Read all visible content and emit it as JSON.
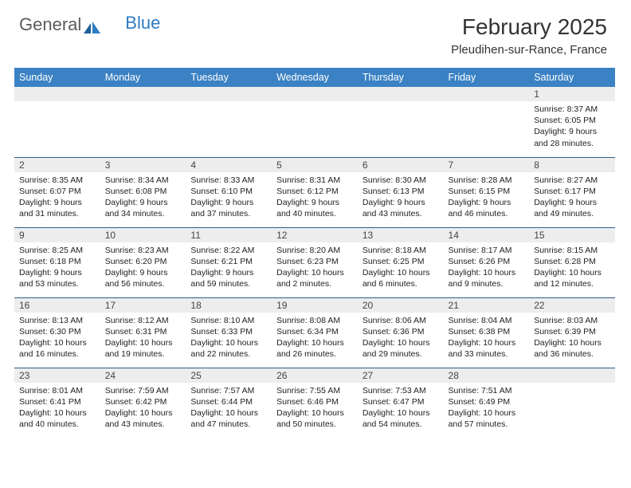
{
  "logo": {
    "text1": "General",
    "text2": "Blue"
  },
  "title": "February 2025",
  "location": "Pleudihen-sur-Rance, France",
  "colors": {
    "header_bg": "#3b82c4",
    "header_text": "#ffffff",
    "daynum_bg": "#ededed",
    "row_border": "#2f5e8a",
    "logo_accent": "#2d7cc1",
    "logo_gray": "#5b5b5b",
    "page_bg": "#ffffff"
  },
  "typography": {
    "title_fontsize": 28,
    "location_fontsize": 15,
    "dayheader_fontsize": 12.5,
    "daynum_fontsize": 12,
    "cell_fontsize": 10.5
  },
  "day_headers": [
    "Sunday",
    "Monday",
    "Tuesday",
    "Wednesday",
    "Thursday",
    "Friday",
    "Saturday"
  ],
  "weeks": [
    [
      {
        "num": "",
        "lines": []
      },
      {
        "num": "",
        "lines": []
      },
      {
        "num": "",
        "lines": []
      },
      {
        "num": "",
        "lines": []
      },
      {
        "num": "",
        "lines": []
      },
      {
        "num": "",
        "lines": []
      },
      {
        "num": "1",
        "lines": [
          "Sunrise: 8:37 AM",
          "Sunset: 6:05 PM",
          "Daylight: 9 hours",
          "and 28 minutes."
        ]
      }
    ],
    [
      {
        "num": "2",
        "lines": [
          "Sunrise: 8:35 AM",
          "Sunset: 6:07 PM",
          "Daylight: 9 hours",
          "and 31 minutes."
        ]
      },
      {
        "num": "3",
        "lines": [
          "Sunrise: 8:34 AM",
          "Sunset: 6:08 PM",
          "Daylight: 9 hours",
          "and 34 minutes."
        ]
      },
      {
        "num": "4",
        "lines": [
          "Sunrise: 8:33 AM",
          "Sunset: 6:10 PM",
          "Daylight: 9 hours",
          "and 37 minutes."
        ]
      },
      {
        "num": "5",
        "lines": [
          "Sunrise: 8:31 AM",
          "Sunset: 6:12 PM",
          "Daylight: 9 hours",
          "and 40 minutes."
        ]
      },
      {
        "num": "6",
        "lines": [
          "Sunrise: 8:30 AM",
          "Sunset: 6:13 PM",
          "Daylight: 9 hours",
          "and 43 minutes."
        ]
      },
      {
        "num": "7",
        "lines": [
          "Sunrise: 8:28 AM",
          "Sunset: 6:15 PM",
          "Daylight: 9 hours",
          "and 46 minutes."
        ]
      },
      {
        "num": "8",
        "lines": [
          "Sunrise: 8:27 AM",
          "Sunset: 6:17 PM",
          "Daylight: 9 hours",
          "and 49 minutes."
        ]
      }
    ],
    [
      {
        "num": "9",
        "lines": [
          "Sunrise: 8:25 AM",
          "Sunset: 6:18 PM",
          "Daylight: 9 hours",
          "and 53 minutes."
        ]
      },
      {
        "num": "10",
        "lines": [
          "Sunrise: 8:23 AM",
          "Sunset: 6:20 PM",
          "Daylight: 9 hours",
          "and 56 minutes."
        ]
      },
      {
        "num": "11",
        "lines": [
          "Sunrise: 8:22 AM",
          "Sunset: 6:21 PM",
          "Daylight: 9 hours",
          "and 59 minutes."
        ]
      },
      {
        "num": "12",
        "lines": [
          "Sunrise: 8:20 AM",
          "Sunset: 6:23 PM",
          "Daylight: 10 hours",
          "and 2 minutes."
        ]
      },
      {
        "num": "13",
        "lines": [
          "Sunrise: 8:18 AM",
          "Sunset: 6:25 PM",
          "Daylight: 10 hours",
          "and 6 minutes."
        ]
      },
      {
        "num": "14",
        "lines": [
          "Sunrise: 8:17 AM",
          "Sunset: 6:26 PM",
          "Daylight: 10 hours",
          "and 9 minutes."
        ]
      },
      {
        "num": "15",
        "lines": [
          "Sunrise: 8:15 AM",
          "Sunset: 6:28 PM",
          "Daylight: 10 hours",
          "and 12 minutes."
        ]
      }
    ],
    [
      {
        "num": "16",
        "lines": [
          "Sunrise: 8:13 AM",
          "Sunset: 6:30 PM",
          "Daylight: 10 hours",
          "and 16 minutes."
        ]
      },
      {
        "num": "17",
        "lines": [
          "Sunrise: 8:12 AM",
          "Sunset: 6:31 PM",
          "Daylight: 10 hours",
          "and 19 minutes."
        ]
      },
      {
        "num": "18",
        "lines": [
          "Sunrise: 8:10 AM",
          "Sunset: 6:33 PM",
          "Daylight: 10 hours",
          "and 22 minutes."
        ]
      },
      {
        "num": "19",
        "lines": [
          "Sunrise: 8:08 AM",
          "Sunset: 6:34 PM",
          "Daylight: 10 hours",
          "and 26 minutes."
        ]
      },
      {
        "num": "20",
        "lines": [
          "Sunrise: 8:06 AM",
          "Sunset: 6:36 PM",
          "Daylight: 10 hours",
          "and 29 minutes."
        ]
      },
      {
        "num": "21",
        "lines": [
          "Sunrise: 8:04 AM",
          "Sunset: 6:38 PM",
          "Daylight: 10 hours",
          "and 33 minutes."
        ]
      },
      {
        "num": "22",
        "lines": [
          "Sunrise: 8:03 AM",
          "Sunset: 6:39 PM",
          "Daylight: 10 hours",
          "and 36 minutes."
        ]
      }
    ],
    [
      {
        "num": "23",
        "lines": [
          "Sunrise: 8:01 AM",
          "Sunset: 6:41 PM",
          "Daylight: 10 hours",
          "and 40 minutes."
        ]
      },
      {
        "num": "24",
        "lines": [
          "Sunrise: 7:59 AM",
          "Sunset: 6:42 PM",
          "Daylight: 10 hours",
          "and 43 minutes."
        ]
      },
      {
        "num": "25",
        "lines": [
          "Sunrise: 7:57 AM",
          "Sunset: 6:44 PM",
          "Daylight: 10 hours",
          "and 47 minutes."
        ]
      },
      {
        "num": "26",
        "lines": [
          "Sunrise: 7:55 AM",
          "Sunset: 6:46 PM",
          "Daylight: 10 hours",
          "and 50 minutes."
        ]
      },
      {
        "num": "27",
        "lines": [
          "Sunrise: 7:53 AM",
          "Sunset: 6:47 PM",
          "Daylight: 10 hours",
          "and 54 minutes."
        ]
      },
      {
        "num": "28",
        "lines": [
          "Sunrise: 7:51 AM",
          "Sunset: 6:49 PM",
          "Daylight: 10 hours",
          "and 57 minutes."
        ]
      },
      {
        "num": "",
        "lines": []
      }
    ]
  ]
}
